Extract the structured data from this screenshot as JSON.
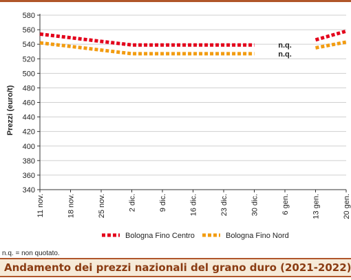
{
  "chart_data": {
    "type": "line",
    "title": "Andamento dei prezzi nazionali del grano duro (2021-2022)",
    "ylabel": "Prezzi (euro/t)",
    "xlabel": "",
    "ylim": [
      340,
      580
    ],
    "yticks": [
      340,
      360,
      380,
      400,
      420,
      440,
      460,
      480,
      500,
      520,
      540,
      560,
      580
    ],
    "grid": "horizontal",
    "legend_position": "bottom",
    "categories": [
      "11 nov.",
      "18 nov.",
      "25 nov.",
      "2 dic.",
      "9 dic.",
      "16 dic.",
      "23 dic.",
      "30 dic.",
      "6 gen.",
      "13 gen.",
      "20 gen."
    ],
    "series": [
      {
        "name": "Bologna Fino Centro",
        "color": "#e3001b",
        "values": [
          554,
          549,
          544,
          539,
          539,
          539,
          539,
          539,
          null,
          546,
          558
        ]
      },
      {
        "name": "Bologna Fino Nord",
        "color": "#f29c11",
        "values": [
          542,
          537,
          532,
          527,
          527,
          527,
          527,
          527,
          null,
          535,
          543
        ]
      }
    ],
    "annotations": [
      {
        "text": "n.q.",
        "category": "6 gen.",
        "series": "Bologna Fino Centro"
      },
      {
        "text": "n.q.",
        "category": "6 gen.",
        "series": "Bologna Fino Nord"
      }
    ]
  },
  "footnote": "n.q. = non quotato."
}
